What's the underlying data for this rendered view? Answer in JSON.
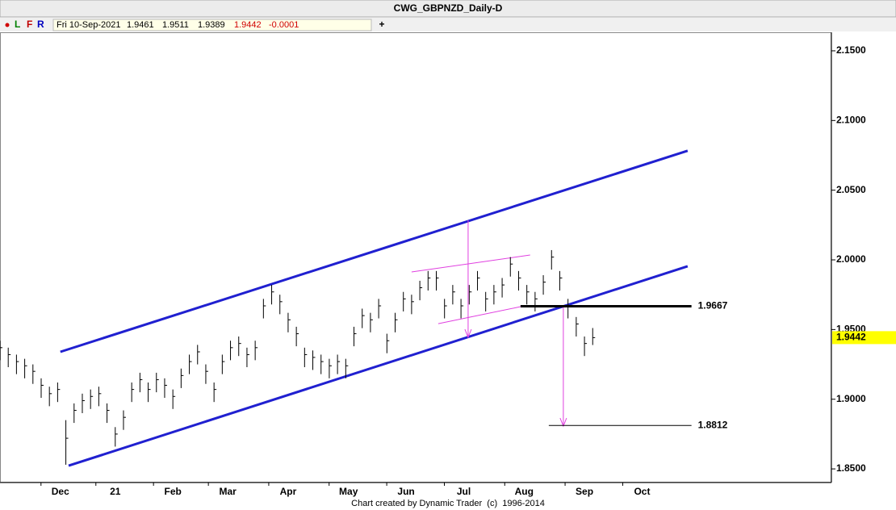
{
  "header": {
    "title": "CWG_GBPNZD_Daily-D",
    "buttons": [
      "L",
      "F",
      "R"
    ],
    "date": "Fri 10-Sep-2021",
    "open": "1.9461",
    "high": "1.9511",
    "low": "1.9389",
    "close": "1.9442",
    "change": "-0.0001",
    "add": "+"
  },
  "footer": "Chart created by Dynamic Trader  (c)  1996-2014",
  "chart_data": {
    "type": "ohlc",
    "color": "#000000",
    "x": [
      0,
      3,
      6,
      9,
      12,
      15,
      18,
      21,
      24,
      27,
      30,
      33,
      36,
      39,
      42,
      45,
      48,
      51,
      54,
      57,
      60,
      63,
      66,
      69,
      72,
      75,
      78,
      81,
      84,
      87,
      90,
      93,
      96,
      99,
      102,
      105,
      108,
      111,
      114,
      117,
      120,
      123,
      126,
      129,
      132,
      135,
      138,
      141,
      144,
      147,
      150,
      153,
      156,
      159,
      162,
      165,
      168,
      171,
      174,
      177,
      180,
      183,
      186,
      189,
      192,
      195,
      198,
      201,
      204,
      207,
      210,
      213,
      216
    ],
    "high": [
      1.942,
      1.937,
      1.932,
      1.929,
      1.925,
      1.915,
      1.909,
      1.912,
      1.885,
      1.897,
      1.904,
      1.907,
      1.909,
      1.897,
      1.88,
      1.892,
      1.912,
      1.919,
      1.912,
      1.919,
      1.915,
      1.907,
      1.922,
      1.932,
      1.939,
      1.925,
      1.912,
      1.932,
      1.942,
      1.945,
      1.937,
      1.942,
      1.972,
      1.982,
      1.975,
      1.962,
      1.952,
      1.937,
      1.935,
      1.932,
      1.929,
      1.932,
      1.929,
      1.952,
      1.965,
      1.962,
      1.972,
      1.947,
      1.962,
      1.977,
      1.975,
      1.985,
      1.992,
      1.992,
      1.972,
      1.982,
      1.972,
      1.982,
      1.992,
      1.977,
      1.982,
      1.987,
      2.002,
      1.992,
      1.982,
      1.977,
      1.989,
      2.007,
      1.992,
      1.972,
      1.959,
      1.945,
      1.9511
    ],
    "low": [
      1.928,
      1.923,
      1.918,
      1.915,
      1.911,
      1.901,
      1.895,
      1.898,
      1.853,
      1.883,
      1.89,
      1.893,
      1.895,
      1.883,
      1.866,
      1.878,
      1.898,
      1.905,
      1.898,
      1.905,
      1.901,
      1.893,
      1.908,
      1.918,
      1.925,
      1.911,
      1.898,
      1.918,
      1.928,
      1.931,
      1.923,
      1.928,
      1.958,
      1.968,
      1.961,
      1.948,
      1.938,
      1.923,
      1.921,
      1.918,
      1.915,
      1.918,
      1.915,
      1.938,
      1.951,
      1.948,
      1.958,
      1.933,
      1.948,
      1.963,
      1.961,
      1.971,
      1.978,
      1.978,
      1.958,
      1.968,
      1.958,
      1.968,
      1.978,
      1.963,
      1.968,
      1.973,
      1.988,
      1.978,
      1.968,
      1.963,
      1.975,
      1.993,
      1.978,
      1.958,
      1.945,
      1.931,
      1.9389
    ],
    "close": [
      1.937,
      1.932,
      1.927,
      1.924,
      1.92,
      1.91,
      1.904,
      1.907,
      1.872,
      1.892,
      1.899,
      1.902,
      1.904,
      1.892,
      1.875,
      1.887,
      1.907,
      1.914,
      1.907,
      1.914,
      1.91,
      1.902,
      1.917,
      1.927,
      1.934,
      1.92,
      1.907,
      1.927,
      1.937,
      1.94,
      1.932,
      1.937,
      1.967,
      1.977,
      1.97,
      1.957,
      1.947,
      1.932,
      1.93,
      1.927,
      1.924,
      1.927,
      1.924,
      1.947,
      1.96,
      1.957,
      1.967,
      1.942,
      1.957,
      1.972,
      1.97,
      1.98,
      1.987,
      1.987,
      1.967,
      1.977,
      1.967,
      1.977,
      1.987,
      1.972,
      1.977,
      1.982,
      1.997,
      1.987,
      1.977,
      1.972,
      1.984,
      2.002,
      1.987,
      1.967,
      1.954,
      1.94,
      1.9442
    ],
    "xlim": [
      0,
      303
    ],
    "xticks": [
      {
        "value": 22,
        "label": "Dec"
      },
      {
        "value": 42,
        "label": "21"
      },
      {
        "value": 63,
        "label": "Feb"
      },
      {
        "value": 83,
        "label": "Mar"
      },
      {
        "value": 105,
        "label": "Apr"
      },
      {
        "value": 127,
        "label": "May"
      },
      {
        "value": 148,
        "label": "Jun"
      },
      {
        "value": 169,
        "label": "Jul"
      },
      {
        "value": 191,
        "label": "Aug"
      },
      {
        "value": 213,
        "label": "Sep"
      },
      {
        "value": 234,
        "label": "Oct"
      }
    ],
    "ylim": [
      1.8402,
      2.1633
    ],
    "yticks": [
      {
        "value": 1.85,
        "label": "1.8500"
      },
      {
        "value": 1.9,
        "label": "1.9000"
      },
      {
        "value": 1.95,
        "label": "1.9500"
      },
      {
        "value": 2.0,
        "label": "2.0000"
      },
      {
        "value": 2.05,
        "label": "2.0500"
      },
      {
        "value": 2.1,
        "label": "2.1000"
      },
      {
        "value": 2.15,
        "label": "2.1500"
      }
    ],
    "trendlines": [
      {
        "x": [
          22,
          250.6
        ],
        "y": [
          1.934,
          2.0783
        ],
        "color": "#2020d0",
        "width": 3
      },
      {
        "x": [
          25,
          250.6
        ],
        "y": [
          1.8523,
          1.9954
        ],
        "color": "#2020d0",
        "width": 3
      },
      {
        "x": [
          150,
          193.2
        ],
        "y": [
          1.9913,
          2.0035
        ],
        "color": "#e040e0",
        "width": 1
      },
      {
        "x": [
          159.7,
          189.7
        ],
        "y": [
          1.9542,
          1.9664
        ],
        "color": "#e040e0",
        "width": 1
      }
    ],
    "arrows": [
      {
        "x": 170.6,
        "y": [
          2.0284,
          1.9444
        ],
        "color": "#e040e0"
      },
      {
        "x": 205.3,
        "y": [
          1.9664,
          1.8807
        ],
        "color": "#e040e0"
      }
    ],
    "levels": [
      {
        "value": 1.9667,
        "x": [
          189.7,
          252
        ],
        "width": 3
      },
      {
        "value": 1.8812,
        "x": [
          200,
          252
        ],
        "width": 1
      }
    ],
    "last": 1.9442,
    "last_color": "#ffff00"
  }
}
